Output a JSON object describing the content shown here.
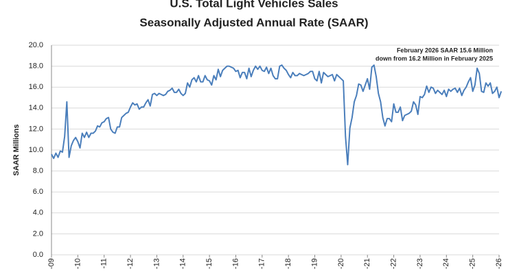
{
  "chart_data": {
    "type": "line",
    "title": "U.S. Total Light Vehicles Sales",
    "subtitle": "Seasonally Adjusted Annual Rate (SAAR)",
    "y_label": "SAAR Millions",
    "annotation": [
      "February 2026 SAAR 15.6 Million",
      "down from 16.2 Million in February 2025"
    ],
    "color": "#4a7ebb",
    "grid": true,
    "ylim": [
      0,
      20
    ],
    "yticks": [
      {
        "value": 0,
        "label": "0.0"
      },
      {
        "value": 2,
        "label": "2.0"
      },
      {
        "value": 4,
        "label": "4.0"
      },
      {
        "value": 6,
        "label": "6.0"
      },
      {
        "value": 8,
        "label": "8.0"
      },
      {
        "value": 10,
        "label": "10.0"
      },
      {
        "value": 12,
        "label": "12.0"
      },
      {
        "value": 14,
        "label": "14.0"
      },
      {
        "value": 16,
        "label": "16.0"
      },
      {
        "value": 18,
        "label": "18.0"
      },
      {
        "value": 20,
        "label": "20.0"
      }
    ],
    "categories": [
      "-09",
      null,
      null,
      null,
      null,
      null,
      null,
      null,
      null,
      null,
      null,
      null,
      "-10",
      null,
      null,
      null,
      null,
      null,
      null,
      null,
      null,
      null,
      null,
      null,
      "-11",
      null,
      null,
      null,
      null,
      null,
      null,
      null,
      null,
      null,
      null,
      null,
      "-12",
      null,
      null,
      null,
      null,
      null,
      null,
      null,
      null,
      null,
      null,
      null,
      "-13",
      null,
      null,
      null,
      null,
      null,
      null,
      null,
      null,
      null,
      null,
      null,
      "-14",
      null,
      null,
      null,
      null,
      null,
      null,
      null,
      null,
      null,
      null,
      null,
      "-15",
      null,
      null,
      null,
      null,
      null,
      null,
      null,
      null,
      null,
      null,
      null,
      "-16",
      null,
      null,
      null,
      null,
      null,
      null,
      null,
      null,
      null,
      null,
      null,
      "-17",
      null,
      null,
      null,
      null,
      null,
      null,
      null,
      null,
      null,
      null,
      null,
      "-18",
      null,
      null,
      null,
      null,
      null,
      null,
      null,
      null,
      null,
      null,
      null,
      "-19",
      null,
      null,
      null,
      null,
      null,
      null,
      null,
      null,
      null,
      null,
      null,
      "-20",
      null,
      null,
      null,
      null,
      null,
      null,
      null,
      null,
      null,
      null,
      null,
      "-21",
      null,
      null,
      null,
      null,
      null,
      null,
      null,
      null,
      null,
      null,
      null,
      "-22",
      null,
      null,
      null,
      null,
      null,
      null,
      null,
      null,
      null,
      null,
      null,
      "-23",
      null,
      null,
      null,
      null,
      null,
      null,
      null,
      null,
      null,
      null,
      null,
      "-24",
      null,
      null,
      null,
      null,
      null,
      null,
      null,
      null,
      null,
      null,
      null,
      "-25",
      null,
      null,
      null,
      null,
      null,
      null,
      null,
      null,
      null,
      null,
      null,
      "-26",
      null
    ],
    "values": [
      9.6,
      9.2,
      9.7,
      9.3,
      9.9,
      9.8,
      11.3,
      14.6,
      9.3,
      10.4,
      10.9,
      11.2,
      10.8,
      10.2,
      11.6,
      11.2,
      11.7,
      11.2,
      11.6,
      11.6,
      11.8,
      12.3,
      12.2,
      12.6,
      12.7,
      13.0,
      13.1,
      12.0,
      11.7,
      11.6,
      12.2,
      12.2,
      13.1,
      13.3,
      13.5,
      13.6,
      14.1,
      14.5,
      14.3,
      14.4,
      13.9,
      14.1,
      14.1,
      14.5,
      14.8,
      14.2,
      15.3,
      15.4,
      15.2,
      15.4,
      15.3,
      15.2,
      15.3,
      15.6,
      15.7,
      15.9,
      15.5,
      15.5,
      15.8,
      15.4,
      15.2,
      15.4,
      16.4,
      16.0,
      16.7,
      16.9,
      16.5,
      17.1,
      16.5,
      16.5,
      17.1,
      16.7,
      16.6,
      16.2,
      17.1,
      16.7,
      17.7,
      17.0,
      17.6,
      17.8,
      18.0,
      18.0,
      17.9,
      17.8,
      17.5,
      17.6,
      16.9,
      17.4,
      17.4,
      16.8,
      17.8,
      17.0,
      17.6,
      18.0,
      17.7,
      18.0,
      17.6,
      17.5,
      17.9,
      17.3,
      17.8,
      17.1,
      16.8,
      16.8,
      18.0,
      18.1,
      17.8,
      17.6,
      17.2,
      16.9,
      17.4,
      17.1,
      17.1,
      17.3,
      17.2,
      17.1,
      17.2,
      17.3,
      17.5,
      17.5,
      16.8,
      16.6,
      17.5,
      16.4,
      17.4,
      17.2,
      17.0,
      17.1,
      17.2,
      16.6,
      17.2,
      17.0,
      16.8,
      16.6,
      11.3,
      8.6,
      12.1,
      13.1,
      14.6,
      15.2,
      16.3,
      16.2,
      15.6,
      16.2,
      16.8,
      15.8,
      17.9,
      18.1,
      17.0,
      15.4,
      14.6,
      13.1,
      12.3,
      13.0,
      13.0,
      12.7,
      14.4,
      13.6,
      13.6,
      14.1,
      12.8,
      13.3,
      13.4,
      13.5,
      13.7,
      14.6,
      14.3,
      13.4,
      15.1,
      15.0,
      15.3,
      16.1,
      15.5,
      16.0,
      15.9,
      15.4,
      15.7,
      15.5,
      15.3,
      15.7,
      15.1,
      15.8,
      15.6,
      15.8,
      15.9,
      15.5,
      15.9,
      15.2,
      15.7,
      16.0,
      16.5,
      16.9,
      15.6,
      16.2,
      17.8,
      17.3,
      15.6,
      15.5,
      16.4,
      16.1,
      16.4,
      15.4,
      15.6,
      16.0,
      15.0,
      15.6
    ]
  }
}
